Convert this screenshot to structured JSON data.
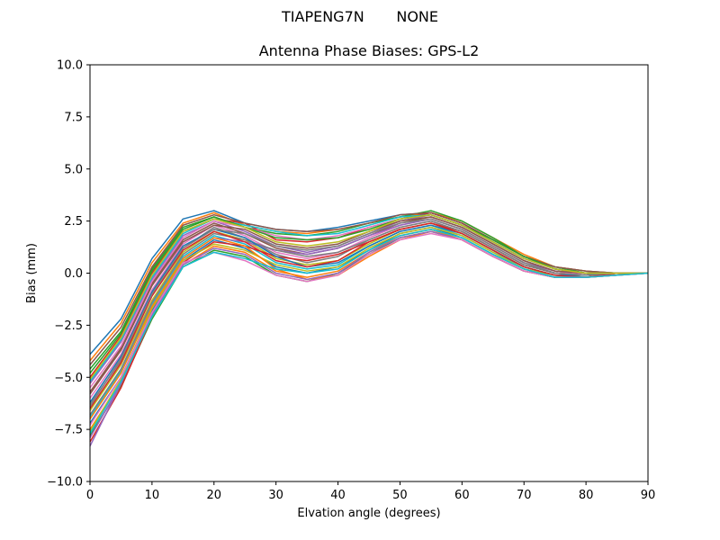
{
  "figure": {
    "suptitle_left": "TIAPENG7N",
    "suptitle_right": "NONE"
  },
  "chart_data": {
    "type": "line",
    "title": "Antenna Phase Biases: GPS-L2",
    "xlabel": "Elvation angle (degrees)",
    "ylabel": "Bias (mm)",
    "xlim": [
      0,
      90
    ],
    "ylim": [
      -10,
      10
    ],
    "xticks": [
      0,
      10,
      20,
      30,
      40,
      50,
      60,
      70,
      80,
      90
    ],
    "yticks": [
      -10.0,
      -7.5,
      -5.0,
      -2.5,
      0.0,
      2.5,
      5.0,
      7.5,
      10.0
    ],
    "ytick_labels": [
      "−10.0",
      "−7.5",
      "−5.0",
      "−2.5",
      "0.0",
      "2.5",
      "5.0",
      "7.5",
      "10.0"
    ],
    "grid": false,
    "legend": "none",
    "x": [
      0,
      5,
      10,
      15,
      20,
      25,
      30,
      35,
      40,
      45,
      50,
      55,
      60,
      65,
      70,
      75,
      80,
      85,
      90
    ],
    "colors": [
      "#1f77b4",
      "#ff7f0e",
      "#2ca02c",
      "#d62728",
      "#9467bd",
      "#8c564b",
      "#e377c2",
      "#7f7f7f",
      "#bcbd22",
      "#17becf"
    ],
    "series": [
      {
        "values": [
          -3.9,
          -2.2,
          0.7,
          2.6,
          3.0,
          2.4,
          2.1,
          2.0,
          2.2,
          2.5,
          2.8,
          2.9,
          2.4,
          1.6,
          0.8,
          0.3,
          0.1,
          0.0,
          0.0
        ]
      },
      {
        "values": [
          -4.2,
          -2.4,
          0.5,
          2.4,
          2.9,
          2.3,
          2.0,
          1.9,
          2.1,
          2.4,
          2.7,
          2.9,
          2.5,
          1.7,
          0.9,
          0.3,
          0.1,
          0.0,
          0.0
        ]
      },
      {
        "values": [
          -4.6,
          -2.8,
          0.2,
          2.2,
          2.7,
          2.2,
          1.9,
          1.8,
          2.0,
          2.4,
          2.7,
          3.0,
          2.5,
          1.7,
          0.8,
          0.3,
          0.0,
          0.0,
          0.0
        ]
      },
      {
        "values": [
          -5.0,
          -3.0,
          0.0,
          2.0,
          2.6,
          2.4,
          1.6,
          1.5,
          1.7,
          2.2,
          2.6,
          2.9,
          2.4,
          1.6,
          0.8,
          0.2,
          0.0,
          0.0,
          0.0
        ]
      },
      {
        "values": [
          -5.3,
          -3.3,
          -0.3,
          1.8,
          2.5,
          2.0,
          1.3,
          1.0,
          1.3,
          1.9,
          2.5,
          2.8,
          2.3,
          1.5,
          0.7,
          0.2,
          0.0,
          0.0,
          0.0
        ]
      },
      {
        "values": [
          -5.7,
          -3.6,
          -0.5,
          1.6,
          2.4,
          1.9,
          1.2,
          0.9,
          1.2,
          1.8,
          2.4,
          2.7,
          2.2,
          1.4,
          0.6,
          0.1,
          -0.1,
          0.0,
          0.0
        ]
      },
      {
        "values": [
          -6.0,
          -3.9,
          -0.8,
          1.4,
          2.3,
          1.8,
          1.0,
          0.7,
          1.0,
          1.7,
          2.3,
          2.6,
          2.1,
          1.3,
          0.5,
          0.1,
          -0.1,
          0.0,
          0.0
        ]
      },
      {
        "values": [
          -6.3,
          -4.2,
          -1.0,
          1.2,
          2.2,
          1.7,
          0.9,
          0.5,
          0.8,
          1.6,
          2.2,
          2.5,
          2.0,
          1.2,
          0.4,
          0.0,
          -0.1,
          0.0,
          0.0
        ]
      },
      {
        "values": [
          -6.6,
          -4.4,
          -1.3,
          1.0,
          2.0,
          1.6,
          0.7,
          0.4,
          0.6,
          1.4,
          2.1,
          2.4,
          1.9,
          1.1,
          0.3,
          -0.1,
          -0.2,
          0.0,
          0.0
        ]
      },
      {
        "values": [
          -6.9,
          -4.7,
          -1.5,
          0.8,
          1.8,
          1.4,
          0.5,
          0.2,
          0.4,
          1.3,
          2.0,
          2.3,
          1.8,
          1.0,
          0.3,
          -0.1,
          -0.2,
          0.0,
          0.0
        ]
      },
      {
        "values": [
          -7.2,
          -5.0,
          -1.8,
          0.6,
          1.6,
          1.2,
          0.3,
          0.0,
          0.3,
          1.1,
          1.9,
          2.2,
          1.7,
          0.9,
          0.2,
          -0.2,
          -0.2,
          0.0,
          0.0
        ]
      },
      {
        "values": [
          -7.5,
          -5.2,
          -2.0,
          0.4,
          1.3,
          1.0,
          0.1,
          -0.2,
          0.1,
          1.0,
          1.8,
          2.1,
          1.6,
          0.8,
          0.1,
          -0.2,
          -0.2,
          -0.1,
          0.0
        ]
      },
      {
        "values": [
          -7.8,
          -5.4,
          -2.2,
          0.3,
          1.1,
          0.8,
          -0.1,
          -0.4,
          0.0,
          0.9,
          1.7,
          2.0,
          1.6,
          0.8,
          0.1,
          -0.2,
          -0.2,
          -0.1,
          0.0
        ]
      },
      {
        "values": [
          -8.1,
          -5.5,
          -2.1,
          0.5,
          1.5,
          1.3,
          0.8,
          0.6,
          0.9,
          1.5,
          2.1,
          2.4,
          2.0,
          1.2,
          0.4,
          0.0,
          -0.1,
          0.0,
          0.0
        ]
      },
      {
        "values": [
          -8.3,
          -5.3,
          -1.9,
          0.7,
          1.7,
          1.5,
          1.1,
          0.9,
          1.2,
          1.8,
          2.3,
          2.6,
          2.1,
          1.3,
          0.5,
          0.1,
          0.0,
          0.0,
          0.0
        ]
      },
      {
        "values": [
          -4.4,
          -2.6,
          0.3,
          2.3,
          2.8,
          2.4,
          2.1,
          2.0,
          2.1,
          2.4,
          2.8,
          2.9,
          2.4,
          1.6,
          0.8,
          0.3,
          0.1,
          0.0,
          0.0
        ]
      },
      {
        "values": [
          -5.5,
          -3.5,
          -0.4,
          1.7,
          2.5,
          2.2,
          1.8,
          1.6,
          1.8,
          2.2,
          2.6,
          2.8,
          2.3,
          1.5,
          0.7,
          0.2,
          0.0,
          0.0,
          0.0
        ]
      },
      {
        "values": [
          -6.8,
          -4.6,
          -1.4,
          0.9,
          1.9,
          1.6,
          1.1,
          0.8,
          1.0,
          1.6,
          2.2,
          2.5,
          2.0,
          1.2,
          0.4,
          0.0,
          -0.1,
          0.0,
          0.0
        ]
      },
      {
        "values": [
          -7.6,
          -5.1,
          -1.7,
          0.6,
          1.4,
          1.1,
          0.4,
          0.1,
          0.3,
          1.2,
          1.9,
          2.2,
          1.8,
          1.0,
          0.2,
          -0.1,
          -0.2,
          0.0,
          0.0
        ]
      },
      {
        "values": [
          -5.2,
          -3.2,
          -0.2,
          1.9,
          2.6,
          2.3,
          2.0,
          1.8,
          1.9,
          2.3,
          2.7,
          2.8,
          2.3,
          1.5,
          0.7,
          0.2,
          0.0,
          0.0,
          0.0
        ]
      },
      {
        "values": [
          -6.2,
          -4.0,
          -0.9,
          1.3,
          2.1,
          1.7,
          0.8,
          0.3,
          0.5,
          1.3,
          2.0,
          2.3,
          1.9,
          1.1,
          0.3,
          -0.1,
          -0.1,
          0.0,
          0.0
        ]
      },
      {
        "values": [
          -7.0,
          -4.8,
          -1.6,
          0.7,
          1.7,
          1.3,
          0.2,
          -0.3,
          -0.1,
          0.8,
          1.6,
          2.0,
          1.6,
          0.8,
          0.1,
          -0.2,
          -0.2,
          0.0,
          0.0
        ]
      },
      {
        "values": [
          -4.8,
          -2.9,
          0.1,
          2.1,
          2.7,
          2.2,
          1.7,
          1.6,
          1.7,
          2.1,
          2.6,
          2.8,
          2.3,
          1.6,
          0.8,
          0.2,
          0.0,
          0.0,
          0.0
        ]
      },
      {
        "values": [
          -6.5,
          -4.3,
          -1.1,
          1.1,
          2.0,
          1.5,
          0.6,
          0.3,
          0.6,
          1.5,
          2.1,
          2.4,
          1.9,
          1.1,
          0.3,
          -0.1,
          -0.2,
          0.0,
          0.0
        ]
      },
      {
        "values": [
          -7.9,
          -5.3,
          -2.0,
          0.4,
          1.2,
          0.9,
          0.0,
          -0.3,
          0.0,
          1.0,
          1.7,
          2.0,
          1.6,
          0.8,
          0.1,
          -0.2,
          -0.2,
          -0.1,
          0.0
        ]
      },
      {
        "values": [
          -5.8,
          -3.7,
          -0.6,
          1.5,
          2.3,
          2.1,
          1.4,
          1.2,
          1.4,
          2.0,
          2.5,
          2.7,
          2.2,
          1.4,
          0.6,
          0.1,
          0.0,
          0.0,
          0.0
        ]
      },
      {
        "values": [
          -7.3,
          -5.0,
          -1.9,
          0.5,
          1.0,
          0.6,
          -0.1,
          -0.4,
          -0.1,
          0.9,
          1.6,
          1.9,
          1.6,
          0.8,
          0.1,
          -0.2,
          -0.2,
          -0.1,
          0.0
        ]
      },
      {
        "values": [
          -6.4,
          -4.1,
          -1.0,
          1.2,
          2.1,
          1.9,
          1.3,
          1.1,
          1.3,
          1.9,
          2.4,
          2.6,
          2.1,
          1.3,
          0.5,
          0.0,
          -0.1,
          0.0,
          0.0
        ]
      },
      {
        "values": [
          -5.1,
          -3.1,
          -0.1,
          2.0,
          2.6,
          2.2,
          1.5,
          1.3,
          1.5,
          2.0,
          2.6,
          2.8,
          2.3,
          1.5,
          0.7,
          0.2,
          0.0,
          0.0,
          0.0
        ]
      },
      {
        "values": [
          -7.7,
          -5.2,
          -2.1,
          0.3,
          1.0,
          0.7,
          0.2,
          0.0,
          0.2,
          1.1,
          1.8,
          2.1,
          1.7,
          0.9,
          0.2,
          -0.2,
          -0.2,
          -0.1,
          0.0
        ]
      }
    ]
  }
}
